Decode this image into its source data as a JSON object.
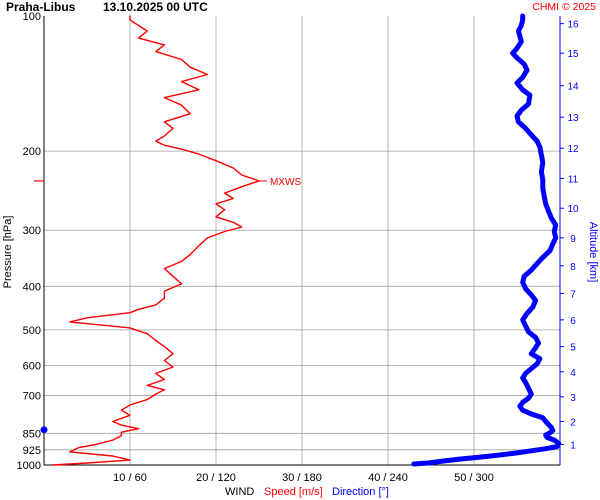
{
  "header": {
    "station": "Praha-Libus",
    "datetime": "13.10.2025 00 UTC",
    "credit": "CHMI © 2025"
  },
  "axes": {
    "y_label": "Pressure [hPa]",
    "y2_label": "Altitude [km]",
    "x_title": "WIND",
    "x_speed_label": "Speed [m/s]",
    "x_dir_label": "Direction [°]"
  },
  "colors": {
    "speed": "#ff0000",
    "direction": "#0000ff",
    "grid": "#a0a0a0",
    "text": "#000000",
    "credit": "#ff0000"
  },
  "chart_data": {
    "type": "line",
    "y_scale": "log",
    "ylim": [
      1000,
      100
    ],
    "y_ticks": [
      100,
      200,
      300,
      400,
      500,
      600,
      700,
      850,
      925,
      1000
    ],
    "x_ticks": [
      {
        "speed": 10,
        "direction": 60,
        "label": "10 / 60"
      },
      {
        "speed": 20,
        "direction": 120,
        "label": "20 / 120"
      },
      {
        "speed": 30,
        "direction": 180,
        "label": "30 / 180"
      },
      {
        "speed": 40,
        "direction": 240,
        "label": "40 / 240"
      },
      {
        "speed": 50,
        "direction": 300,
        "label": "50 / 300"
      }
    ],
    "xlim_speed": [
      0,
      60
    ],
    "xlim_direction": [
      0,
      360
    ],
    "altitude_km_ticks": [
      {
        "km": 1,
        "p": 900
      },
      {
        "km": 2,
        "p": 800
      },
      {
        "km": 3,
        "p": 705
      },
      {
        "km": 4,
        "p": 620
      },
      {
        "km": 5,
        "p": 545
      },
      {
        "km": 6,
        "p": 475
      },
      {
        "km": 7,
        "p": 415
      },
      {
        "km": 8,
        "p": 360
      },
      {
        "km": 9,
        "p": 312
      },
      {
        "km": 10,
        "p": 268
      },
      {
        "km": 11,
        "p": 230
      },
      {
        "km": 12,
        "p": 197
      },
      {
        "km": 13,
        "p": 168
      },
      {
        "km": 14,
        "p": 143
      },
      {
        "km": 15,
        "p": 121
      },
      {
        "km": 16,
        "p": 104
      }
    ],
    "annotations": [
      {
        "text": "MXWS",
        "p": 233,
        "speed": 25
      }
    ],
    "tropopause_marker_p": 233,
    "surface_marker_p": 835,
    "series": [
      {
        "name": "Speed [m/s]",
        "quantity": "speed",
        "points": [
          [
            1000,
            1
          ],
          [
            990,
            5
          ],
          [
            975,
            10
          ],
          [
            955,
            8
          ],
          [
            935,
            3
          ],
          [
            915,
            4
          ],
          [
            900,
            6
          ],
          [
            880,
            8
          ],
          [
            860,
            9
          ],
          [
            845,
            9
          ],
          [
            830,
            11
          ],
          [
            815,
            9
          ],
          [
            800,
            8
          ],
          [
            775,
            10
          ],
          [
            755,
            9
          ],
          [
            735,
            10
          ],
          [
            715,
            12
          ],
          [
            695,
            13
          ],
          [
            680,
            14
          ],
          [
            665,
            12
          ],
          [
            645,
            14
          ],
          [
            625,
            13
          ],
          [
            605,
            15
          ],
          [
            585,
            14
          ],
          [
            565,
            15
          ],
          [
            545,
            14
          ],
          [
            528,
            13
          ],
          [
            510,
            12
          ],
          [
            495,
            10
          ],
          [
            480,
            3
          ],
          [
            470,
            5
          ],
          [
            458,
            10
          ],
          [
            450,
            11
          ],
          [
            440,
            13
          ],
          [
            425,
            14
          ],
          [
            410,
            14
          ],
          [
            395,
            16
          ],
          [
            380,
            15
          ],
          [
            365,
            14
          ],
          [
            352,
            16
          ],
          [
            340,
            17
          ],
          [
            325,
            18
          ],
          [
            312,
            19
          ],
          [
            302,
            21
          ],
          [
            295,
            23
          ],
          [
            288,
            22
          ],
          [
            280,
            20
          ],
          [
            270,
            21
          ],
          [
            262,
            20
          ],
          [
            255,
            22
          ],
          [
            248,
            21
          ],
          [
            240,
            23
          ],
          [
            233,
            25
          ],
          [
            226,
            23
          ],
          [
            218,
            22
          ],
          [
            210,
            20
          ],
          [
            203,
            18
          ],
          [
            198,
            16
          ],
          [
            194,
            14
          ],
          [
            190,
            13
          ],
          [
            185,
            14
          ],
          [
            178,
            15
          ],
          [
            172,
            14
          ],
          [
            165,
            17
          ],
          [
            158,
            16
          ],
          [
            152,
            14
          ],
          [
            146,
            18
          ],
          [
            140,
            16
          ],
          [
            135,
            19
          ],
          [
            130,
            17
          ],
          [
            125,
            16
          ],
          [
            120,
            13
          ],
          [
            116,
            14
          ],
          [
            112,
            11
          ],
          [
            108,
            12
          ],
          [
            105,
            11
          ],
          [
            102,
            10
          ],
          [
            100,
            10
          ]
        ]
      },
      {
        "name": "Direction [°]",
        "quantity": "direction",
        "points": [
          [
            995,
            258
          ],
          [
            990,
            268
          ],
          [
            980,
            278
          ],
          [
            970,
            290
          ],
          [
            960,
            305
          ],
          [
            950,
            318
          ],
          [
            940,
            330
          ],
          [
            930,
            340
          ],
          [
            920,
            350
          ],
          [
            910,
            358
          ],
          [
            895,
            359
          ],
          [
            880,
            356
          ],
          [
            868,
            351
          ],
          [
            858,
            350
          ],
          [
            848,
            353
          ],
          [
            838,
            355
          ],
          [
            825,
            354
          ],
          [
            812,
            352
          ],
          [
            800,
            350
          ],
          [
            785,
            348
          ],
          [
            770,
            340
          ],
          [
            755,
            334
          ],
          [
            740,
            332
          ],
          [
            725,
            334
          ],
          [
            710,
            338
          ],
          [
            695,
            340
          ],
          [
            675,
            338
          ],
          [
            655,
            336
          ],
          [
            640,
            334
          ],
          [
            625,
            336
          ],
          [
            610,
            340
          ],
          [
            595,
            344
          ],
          [
            580,
            346
          ],
          [
            565,
            340
          ],
          [
            548,
            343
          ],
          [
            535,
            345
          ],
          [
            520,
            343
          ],
          [
            505,
            338
          ],
          [
            490,
            336
          ],
          [
            475,
            334
          ],
          [
            460,
            337
          ],
          [
            445,
            341
          ],
          [
            430,
            343
          ],
          [
            418,
            340
          ],
          [
            405,
            336
          ],
          [
            392,
            334
          ],
          [
            380,
            335
          ],
          [
            368,
            340
          ],
          [
            356,
            344
          ],
          [
            345,
            348
          ],
          [
            333,
            353
          ],
          [
            322,
            355
          ],
          [
            312,
            357
          ],
          [
            302,
            356
          ],
          [
            292,
            357
          ],
          [
            282,
            354
          ],
          [
            272,
            352
          ],
          [
            262,
            350
          ],
          [
            252,
            349
          ],
          [
            242,
            348
          ],
          [
            232,
            348
          ],
          [
            222,
            347
          ],
          [
            212,
            348
          ],
          [
            204,
            347
          ],
          [
            196,
            346
          ],
          [
            190,
            344
          ],
          [
            184,
            340
          ],
          [
            178,
            336
          ],
          [
            172,
            331
          ],
          [
            167,
            330
          ],
          [
            162,
            333
          ],
          [
            157,
            338
          ],
          [
            150,
            339
          ],
          [
            146,
            334
          ],
          [
            141,
            330
          ],
          [
            137,
            334
          ],
          [
            132,
            337
          ],
          [
            128,
            335
          ],
          [
            124,
            330
          ],
          [
            121,
            327
          ],
          [
            118,
            330
          ],
          [
            114,
            333
          ],
          [
            111,
            332
          ],
          [
            108,
            331
          ],
          [
            105,
            333
          ],
          [
            102,
            334
          ],
          [
            100,
            334
          ]
        ]
      }
    ]
  }
}
